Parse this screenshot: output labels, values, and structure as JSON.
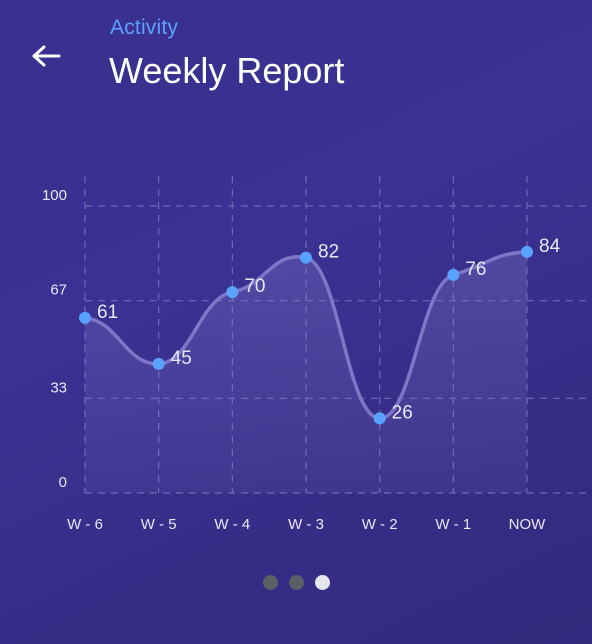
{
  "header": {
    "back_icon": "arrow-left-icon",
    "subtitle": "Activity",
    "title": "Weekly Report"
  },
  "colors": {
    "accent": "#5aa2ff",
    "point": "#5aa2ff",
    "line": "#7f76c9",
    "grid": "#6f67b8",
    "axis_text": "#ffffff",
    "tick_text": "#e8e6f5",
    "dot_inactive": "#5d5f66",
    "dot_active": "#e6e6ee"
  },
  "pager": {
    "count": 3,
    "active_index": 2
  },
  "chart_data": {
    "type": "line",
    "smooth": true,
    "area_fill": true,
    "categories": [
      "W - 6",
      "W - 5",
      "W - 4",
      "W - 3",
      "W - 2",
      "W - 1",
      "NOW"
    ],
    "values": [
      61,
      45,
      70,
      82,
      26,
      76,
      84
    ],
    "data_labels": [
      "61",
      "45",
      "70",
      "82",
      "26",
      "76",
      "84"
    ],
    "yticks": [
      0,
      33,
      67,
      100
    ],
    "ylim": [
      0,
      100
    ],
    "title": "",
    "xlabel": "",
    "ylabel": "",
    "grid": "dashed"
  }
}
